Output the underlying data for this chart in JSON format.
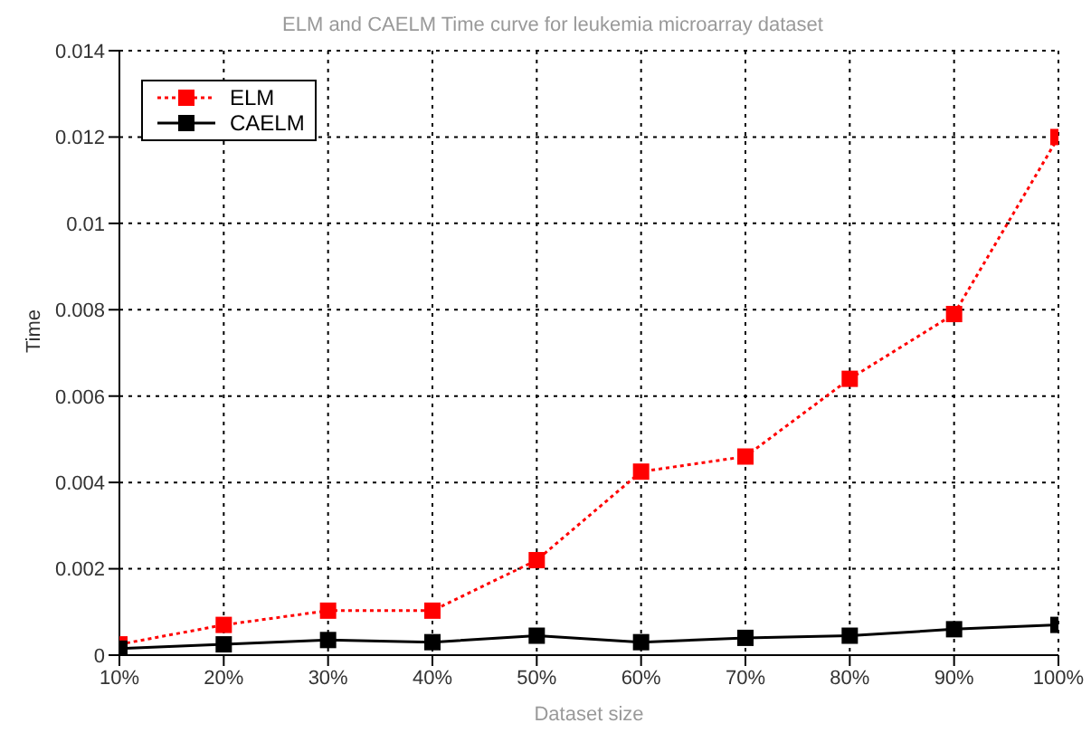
{
  "chart_data": {
    "type": "line",
    "title": "ELM and CAELM Time curve for leukemia microarray dataset",
    "xlabel": "Dataset size",
    "ylabel": "Time",
    "categories": [
      "10%",
      "20%",
      "30%",
      "40%",
      "50%",
      "60%",
      "70%",
      "80%",
      "90%",
      "100%"
    ],
    "series": [
      {
        "name": "ELM",
        "color": "#ff0000",
        "line_style": "dotted",
        "marker": "square",
        "values": [
          0.00025,
          0.0007,
          0.00103,
          0.00103,
          0.0022,
          0.00425,
          0.0046,
          0.0064,
          0.0079,
          0.012
        ]
      },
      {
        "name": "CAELM",
        "color": "#000000",
        "line_style": "solid",
        "marker": "square",
        "values": [
          0.00015,
          0.00025,
          0.00035,
          0.0003,
          0.00045,
          0.0003,
          0.0004,
          0.00045,
          0.0006,
          0.0007
        ]
      }
    ],
    "ylim": [
      0,
      0.014
    ],
    "yticks": [
      0,
      0.002,
      0.004,
      0.006,
      0.008,
      0.01,
      0.012,
      0.014
    ],
    "grid": true,
    "legend": "top left"
  }
}
